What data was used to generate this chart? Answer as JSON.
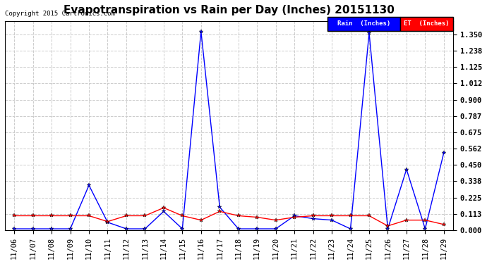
{
  "title": "Evapotranspiration vs Rain per Day (Inches) 20151130",
  "copyright": "Copyright 2015 Cartronics.com",
  "background_color": "#ffffff",
  "plot_bg_color": "#ffffff",
  "grid_color": "#cccccc",
  "x_labels": [
    "11/06",
    "11/07",
    "11/08",
    "11/09",
    "11/10",
    "11/11",
    "11/12",
    "11/13",
    "11/14",
    "11/15",
    "11/16",
    "11/17",
    "11/18",
    "11/19",
    "11/20",
    "11/21",
    "11/22",
    "11/23",
    "11/24",
    "11/25",
    "11/26",
    "11/27",
    "11/28",
    "11/29"
  ],
  "rain_values": [
    0.01,
    0.01,
    0.01,
    0.01,
    0.31,
    0.055,
    0.01,
    0.01,
    0.13,
    0.01,
    1.37,
    0.16,
    0.01,
    0.01,
    0.01,
    0.1,
    0.08,
    0.07,
    0.01,
    1.36,
    0.01,
    0.42,
    0.01,
    0.535
  ],
  "et_values": [
    0.1,
    0.1,
    0.1,
    0.1,
    0.1,
    0.06,
    0.1,
    0.1,
    0.155,
    0.1,
    0.07,
    0.13,
    0.1,
    0.09,
    0.07,
    0.09,
    0.1,
    0.1,
    0.1,
    0.1,
    0.03,
    0.07,
    0.07,
    0.04
  ],
  "rain_color": "#0000ff",
  "et_color": "#ff0000",
  "marker": "*",
  "marker_size": 4,
  "line_width": 1.0,
  "ylim": [
    0,
    1.44
  ],
  "yticks": [
    0.0,
    0.113,
    0.225,
    0.338,
    0.45,
    0.562,
    0.675,
    0.787,
    0.9,
    1.012,
    1.125,
    1.238,
    1.35
  ],
  "title_fontsize": 11,
  "tick_fontsize": 7.5,
  "copyright_fontsize": 6.5,
  "legend_rain_label": "Rain  (Inches)",
  "legend_et_label": "ET  (Inches)"
}
